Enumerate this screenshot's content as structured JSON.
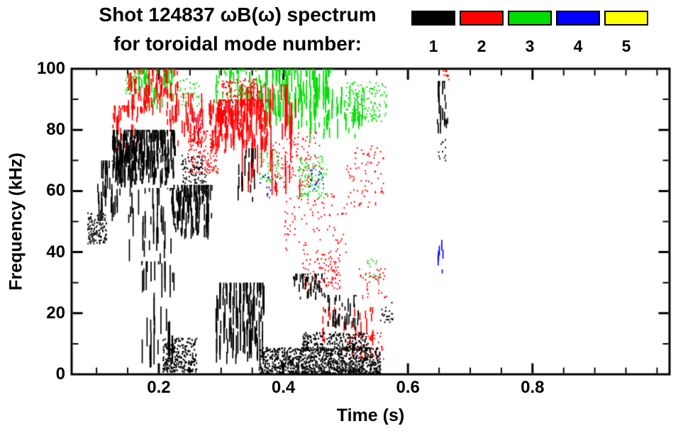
{
  "figure": {
    "background": "#ffffff",
    "frame_color": "#000000"
  },
  "chart_data": {
    "type": "scatter",
    "title": "Shot 124837 ωB(ω) spectrum",
    "subtitle": "for toroidal mode number:",
    "xlabel": "Time (s)",
    "ylabel": "Frequency (kHz)",
    "xlim": [
      0.06,
      1.02
    ],
    "ylim": [
      0,
      100
    ],
    "xticks": [
      0.2,
      0.4,
      0.6,
      0.8
    ],
    "xtick_labels": [
      "0.2",
      "0.4",
      "0.6",
      "0.8"
    ],
    "xminor_step": 0.05,
    "yticks": [
      0,
      20,
      40,
      60,
      80,
      100
    ],
    "ytick_labels": [
      "0",
      "20",
      "40",
      "60",
      "80",
      "100"
    ],
    "yminor_step": 10,
    "grid": false,
    "legend_position": "top-right",
    "legend": [
      {
        "label": "1",
        "color": "#000000"
      },
      {
        "label": "2",
        "color": "#ff0000"
      },
      {
        "label": "3",
        "color": "#00dd00"
      },
      {
        "label": "4",
        "color": "#0000ff"
      },
      {
        "label": "5",
        "color": "#ffff00"
      }
    ],
    "series": [
      {
        "name": "n=1",
        "color": "#000000",
        "clusters": [
          {
            "t": [
              0.085,
              0.115
            ],
            "f": [
              43,
              53
            ],
            "n": 140,
            "style": "dot"
          },
          {
            "t": [
              0.1,
              0.14
            ],
            "f": [
              50,
              70
            ],
            "n": 220,
            "style": "streak",
            "cols": 12
          },
          {
            "t": [
              0.125,
              0.225
            ],
            "f": [
              61,
              80
            ],
            "n": 1400,
            "style": "streak",
            "cols": 36
          },
          {
            "t": [
              0.15,
              0.23
            ],
            "f": [
              36,
              61
            ],
            "n": 200,
            "style": "streak",
            "cols": 16
          },
          {
            "t": [
              0.22,
              0.285
            ],
            "f": [
              44,
              62
            ],
            "n": 600,
            "style": "streak",
            "cols": 20
          },
          {
            "t": [
              0.235,
              0.275
            ],
            "f": [
              62,
              72
            ],
            "n": 90,
            "style": "dot"
          },
          {
            "t": [
              0.17,
              0.225
            ],
            "f": [
              2,
              37
            ],
            "n": 180,
            "style": "streak",
            "cols": 9
          },
          {
            "t": [
              0.205,
              0.26
            ],
            "f": [
              1,
              12
            ],
            "n": 260,
            "style": "band"
          },
          {
            "t": [
              0.29,
              0.37
            ],
            "f": [
              3,
              30
            ],
            "n": 620,
            "style": "streak",
            "cols": 15
          },
          {
            "t": [
              0.325,
              0.355
            ],
            "f": [
              55,
              74
            ],
            "n": 90,
            "style": "streak",
            "cols": 6
          },
          {
            "t": [
              0.36,
              0.555
            ],
            "f": [
              0.5,
              9
            ],
            "n": 950,
            "style": "band"
          },
          {
            "t": [
              0.43,
              0.535
            ],
            "f": [
              8,
              14
            ],
            "n": 260,
            "style": "band"
          },
          {
            "t": [
              0.415,
              0.465
            ],
            "f": [
              24,
              33
            ],
            "n": 230,
            "style": "streak",
            "cols": 12
          },
          {
            "t": [
              0.465,
              0.52
            ],
            "f": [
              14,
              26
            ],
            "n": 210,
            "style": "streak",
            "cols": 11
          },
          {
            "t": [
              0.555,
              0.575
            ],
            "f": [
              17,
              24
            ],
            "n": 24,
            "style": "dot"
          },
          {
            "t": [
              0.645,
              0.665
            ],
            "f": [
              78,
              96
            ],
            "n": 110,
            "style": "streak",
            "cols": 5
          },
          {
            "t": [
              0.648,
              0.66
            ],
            "f": [
              70,
              77
            ],
            "n": 12,
            "style": "dot"
          }
        ]
      },
      {
        "name": "n=2",
        "color": "#ff0000",
        "clusters": [
          {
            "t": [
              0.125,
              0.165
            ],
            "f": [
              72,
              88
            ],
            "n": 200,
            "style": "streak",
            "cols": 11
          },
          {
            "t": [
              0.15,
              0.21
            ],
            "f": [
              84,
              100
            ],
            "n": 320,
            "style": "streak",
            "cols": 15
          },
          {
            "t": [
              0.195,
              0.23
            ],
            "f": [
              90,
              100
            ],
            "n": 140,
            "style": "streak",
            "cols": 8
          },
          {
            "t": [
              0.21,
              0.27
            ],
            "f": [
              74,
              92
            ],
            "n": 260,
            "style": "streak",
            "cols": 13
          },
          {
            "t": [
              0.245,
              0.295
            ],
            "f": [
              66,
              80
            ],
            "n": 160,
            "style": "dot"
          },
          {
            "t": [
              0.28,
              0.38
            ],
            "f": [
              72,
              90
            ],
            "n": 850,
            "style": "streak",
            "cols": 26
          },
          {
            "t": [
              0.3,
              0.36
            ],
            "f": [
              88,
              97
            ],
            "n": 130,
            "style": "dot"
          },
          {
            "t": [
              0.33,
              0.43
            ],
            "f": [
              55,
              95
            ],
            "n": 260,
            "style": "streak",
            "cols": 13
          },
          {
            "t": [
              0.38,
              0.46
            ],
            "f": [
              60,
              80
            ],
            "n": 110,
            "style": "dot"
          },
          {
            "t": [
              0.4,
              0.5
            ],
            "f": [
              40,
              60
            ],
            "n": 90,
            "style": "dot"
          },
          {
            "t": [
              0.43,
              0.49
            ],
            "f": [
              28,
              40
            ],
            "n": 110,
            "style": "dot"
          },
          {
            "t": [
              0.46,
              0.545
            ],
            "f": [
              10,
              22
            ],
            "n": 150,
            "style": "streak",
            "cols": 10
          },
          {
            "t": [
              0.5,
              0.56
            ],
            "f": [
              5,
              14
            ],
            "n": 90,
            "style": "dot"
          },
          {
            "t": [
              0.5,
              0.56
            ],
            "f": [
              55,
              75
            ],
            "n": 80,
            "style": "dot"
          },
          {
            "t": [
              0.52,
              0.565
            ],
            "f": [
              25,
              35
            ],
            "n": 40,
            "style": "dot"
          },
          {
            "t": [
              0.655,
              0.665
            ],
            "f": [
              96,
              100
            ],
            "n": 14,
            "style": "dot"
          }
        ]
      },
      {
        "name": "n=3",
        "color": "#00dd00",
        "clusters": [
          {
            "t": [
              0.145,
              0.17
            ],
            "f": [
              92,
              100
            ],
            "n": 60,
            "style": "dot"
          },
          {
            "t": [
              0.165,
              0.225
            ],
            "f": [
              86,
              100
            ],
            "n": 260,
            "style": "streak",
            "cols": 13
          },
          {
            "t": [
              0.23,
              0.265
            ],
            "f": [
              88,
              97
            ],
            "n": 40,
            "style": "dot"
          },
          {
            "t": [
              0.29,
              0.37
            ],
            "f": [
              88,
              100
            ],
            "n": 300,
            "style": "streak",
            "cols": 15
          },
          {
            "t": [
              0.37,
              0.48
            ],
            "f": [
              80,
              100
            ],
            "n": 650,
            "style": "streak",
            "cols": 22
          },
          {
            "t": [
              0.44,
              0.53
            ],
            "f": [
              76,
              94
            ],
            "n": 300,
            "style": "streak",
            "cols": 13
          },
          {
            "t": [
              0.5,
              0.565
            ],
            "f": [
              83,
              96
            ],
            "n": 140,
            "style": "dot"
          },
          {
            "t": [
              0.42,
              0.47
            ],
            "f": [
              58,
              72
            ],
            "n": 110,
            "style": "dot"
          },
          {
            "t": [
              0.36,
              0.395
            ],
            "f": [
              63,
              74
            ],
            "n": 45,
            "style": "dot"
          },
          {
            "t": [
              0.53,
              0.555
            ],
            "f": [
              30,
              38
            ],
            "n": 16,
            "style": "dot"
          }
        ]
      },
      {
        "name": "n=4",
        "color": "#0000ff",
        "clusters": [
          {
            "t": [
              0.3,
              0.335
            ],
            "f": [
              80,
              90
            ],
            "n": 22,
            "style": "dot"
          },
          {
            "t": [
              0.255,
              0.27
            ],
            "f": [
              78,
              84
            ],
            "n": 10,
            "style": "dot"
          },
          {
            "t": [
              0.36,
              0.38
            ],
            "f": [
              58,
              66
            ],
            "n": 12,
            "style": "dot"
          },
          {
            "t": [
              0.44,
              0.465
            ],
            "f": [
              60,
              68
            ],
            "n": 16,
            "style": "dot"
          },
          {
            "t": [
              0.645,
              0.657
            ],
            "f": [
              32,
              44
            ],
            "n": 28,
            "style": "streak",
            "cols": 2
          }
        ]
      },
      {
        "name": "n=5",
        "color": "#ffff00",
        "clusters": []
      }
    ]
  }
}
